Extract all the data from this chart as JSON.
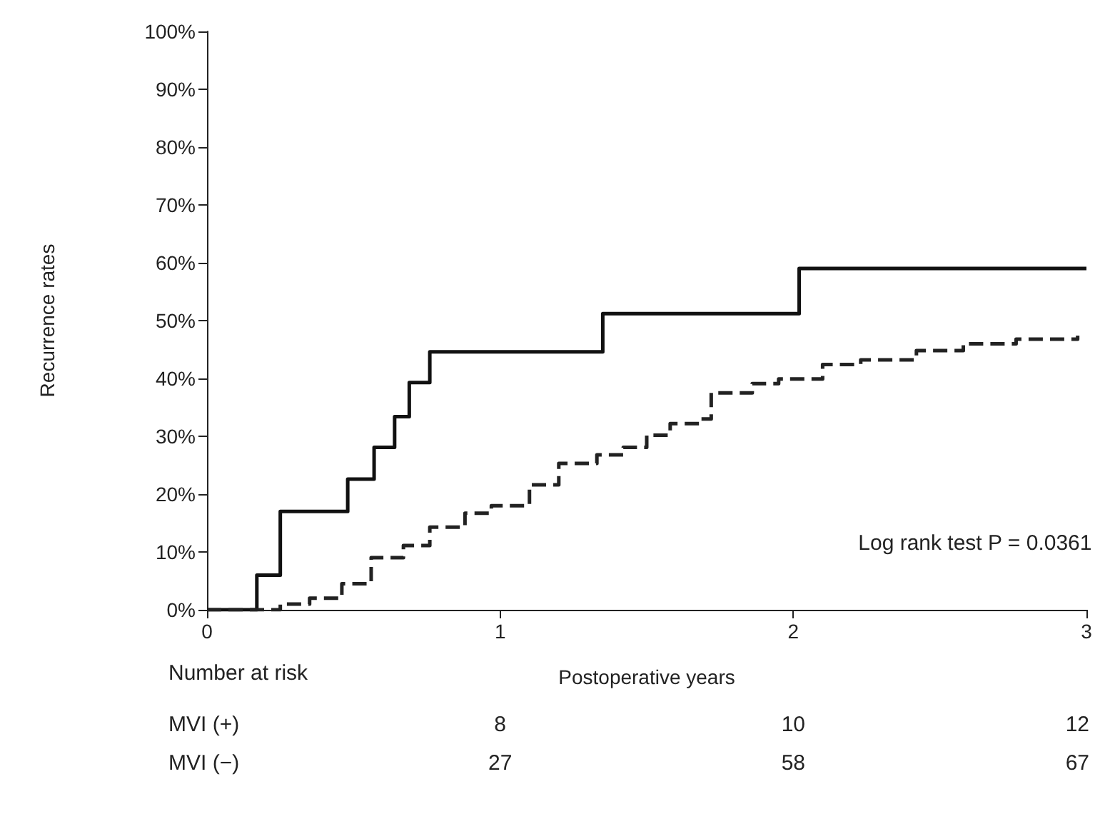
{
  "chart_data": {
    "type": "step",
    "xlabel": "Postoperative years",
    "ylabel": "Recurrence rates",
    "xlim": [
      0,
      3
    ],
    "xticks": [
      0,
      1,
      2,
      3
    ],
    "ylim": [
      0,
      100
    ],
    "yticks": [
      {
        "value": 0,
        "label": "0%"
      },
      {
        "value": 10,
        "label": "10%"
      },
      {
        "value": 20,
        "label": "20%"
      },
      {
        "value": 30,
        "label": "30%"
      },
      {
        "value": 40,
        "label": "40%"
      },
      {
        "value": 50,
        "label": "50%"
      },
      {
        "value": 60,
        "label": "60%"
      },
      {
        "value": 70,
        "label": "70%"
      },
      {
        "value": 80,
        "label": "80%"
      },
      {
        "value": 90,
        "label": "90%"
      },
      {
        "value": 100,
        "label": "100%"
      }
    ],
    "grid": false,
    "marker": "none",
    "series": [
      {
        "color": "#111111",
        "line_style": "solid",
        "x": [
          0,
          0.17,
          0.25,
          0.48,
          0.57,
          0.64,
          0.69,
          0.76,
          1.35,
          2.02,
          3
        ],
        "values": [
          0,
          6,
          17,
          22.6,
          28.1,
          33.4,
          39.3,
          44.6,
          51.2,
          59,
          59
        ]
      },
      {
        "color": "#222222",
        "line_style": "dashed",
        "x": [
          0,
          0.15,
          0.25,
          0.35,
          0.46,
          0.56,
          0.67,
          0.76,
          0.88,
          0.97,
          1.1,
          1.2,
          1.33,
          1.42,
          1.5,
          1.58,
          1.68,
          1.72,
          1.86,
          1.95,
          2.1,
          2.23,
          2.42,
          2.58,
          2.76,
          2.97
        ],
        "values": [
          0,
          0,
          1,
          2,
          4.5,
          9,
          11.1,
          14.3,
          16.7,
          18,
          21.6,
          25.3,
          26.8,
          28.1,
          30.2,
          32.2,
          33,
          37.5,
          39.1,
          39.9,
          42.4,
          43.2,
          44.8,
          46,
          46.8,
          47.4
        ]
      }
    ],
    "annotations": [
      "Log rank test P = 0.0361",
      "Number at risk",
      "MVI (+)",
      "8",
      "10",
      "12",
      "MVI (−)",
      "27",
      "58",
      "67"
    ]
  }
}
